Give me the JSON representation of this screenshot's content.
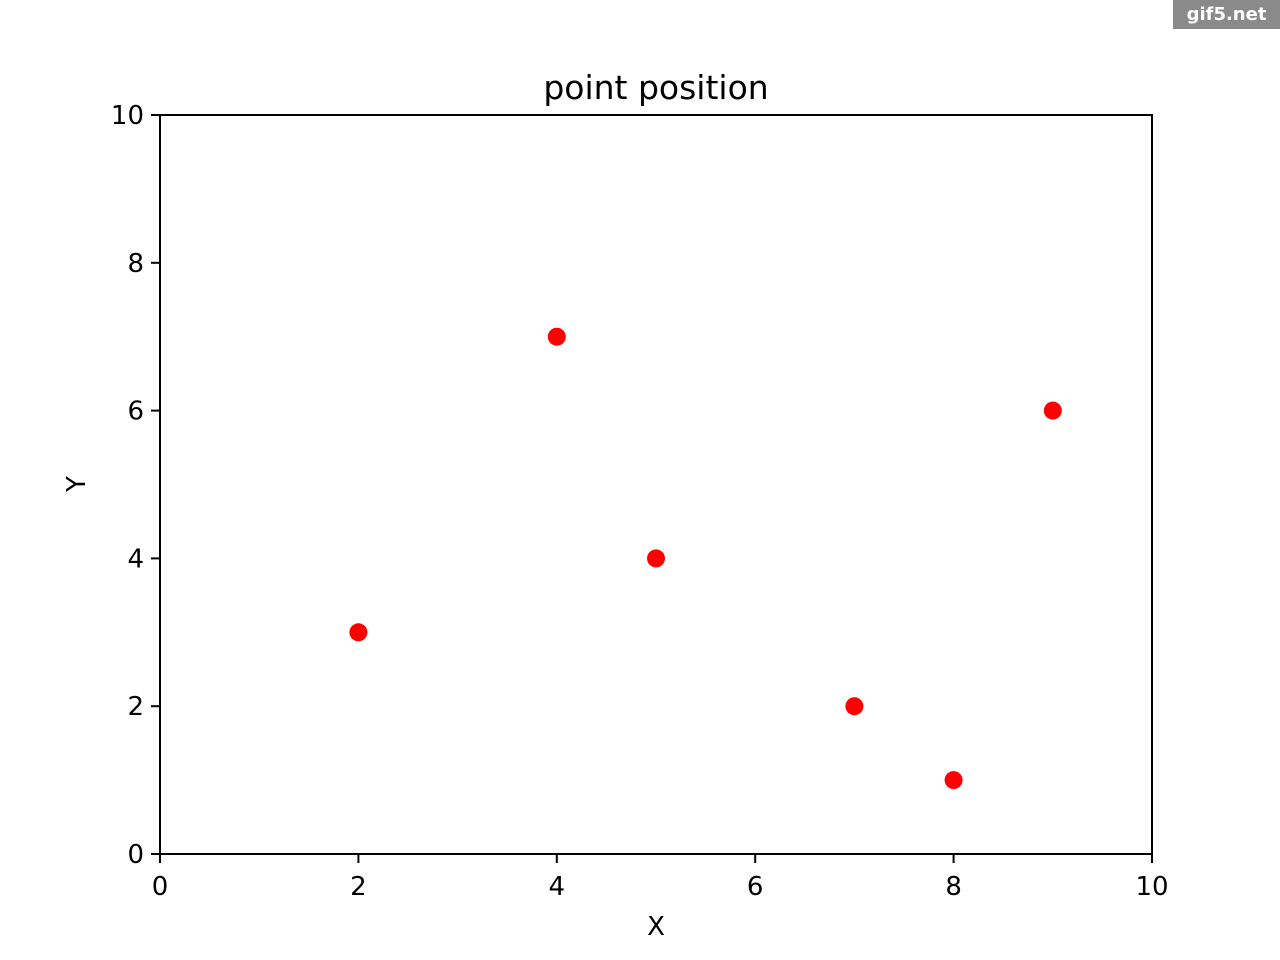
{
  "watermark": "gif5.net",
  "chart_data": {
    "type": "scatter",
    "title": "point position",
    "xlabel": "X",
    "ylabel": "Y",
    "xlim": [
      0,
      10
    ],
    "ylim": [
      0,
      10
    ],
    "xticks": [
      0,
      2,
      4,
      6,
      8,
      10
    ],
    "yticks": [
      0,
      2,
      4,
      6,
      8,
      10
    ],
    "grid": false,
    "marker_color": "#ff0000",
    "points": [
      {
        "x": 2,
        "y": 3
      },
      {
        "x": 4,
        "y": 7
      },
      {
        "x": 5,
        "y": 4
      },
      {
        "x": 7,
        "y": 2
      },
      {
        "x": 8,
        "y": 1
      },
      {
        "x": 9,
        "y": 6
      }
    ]
  }
}
